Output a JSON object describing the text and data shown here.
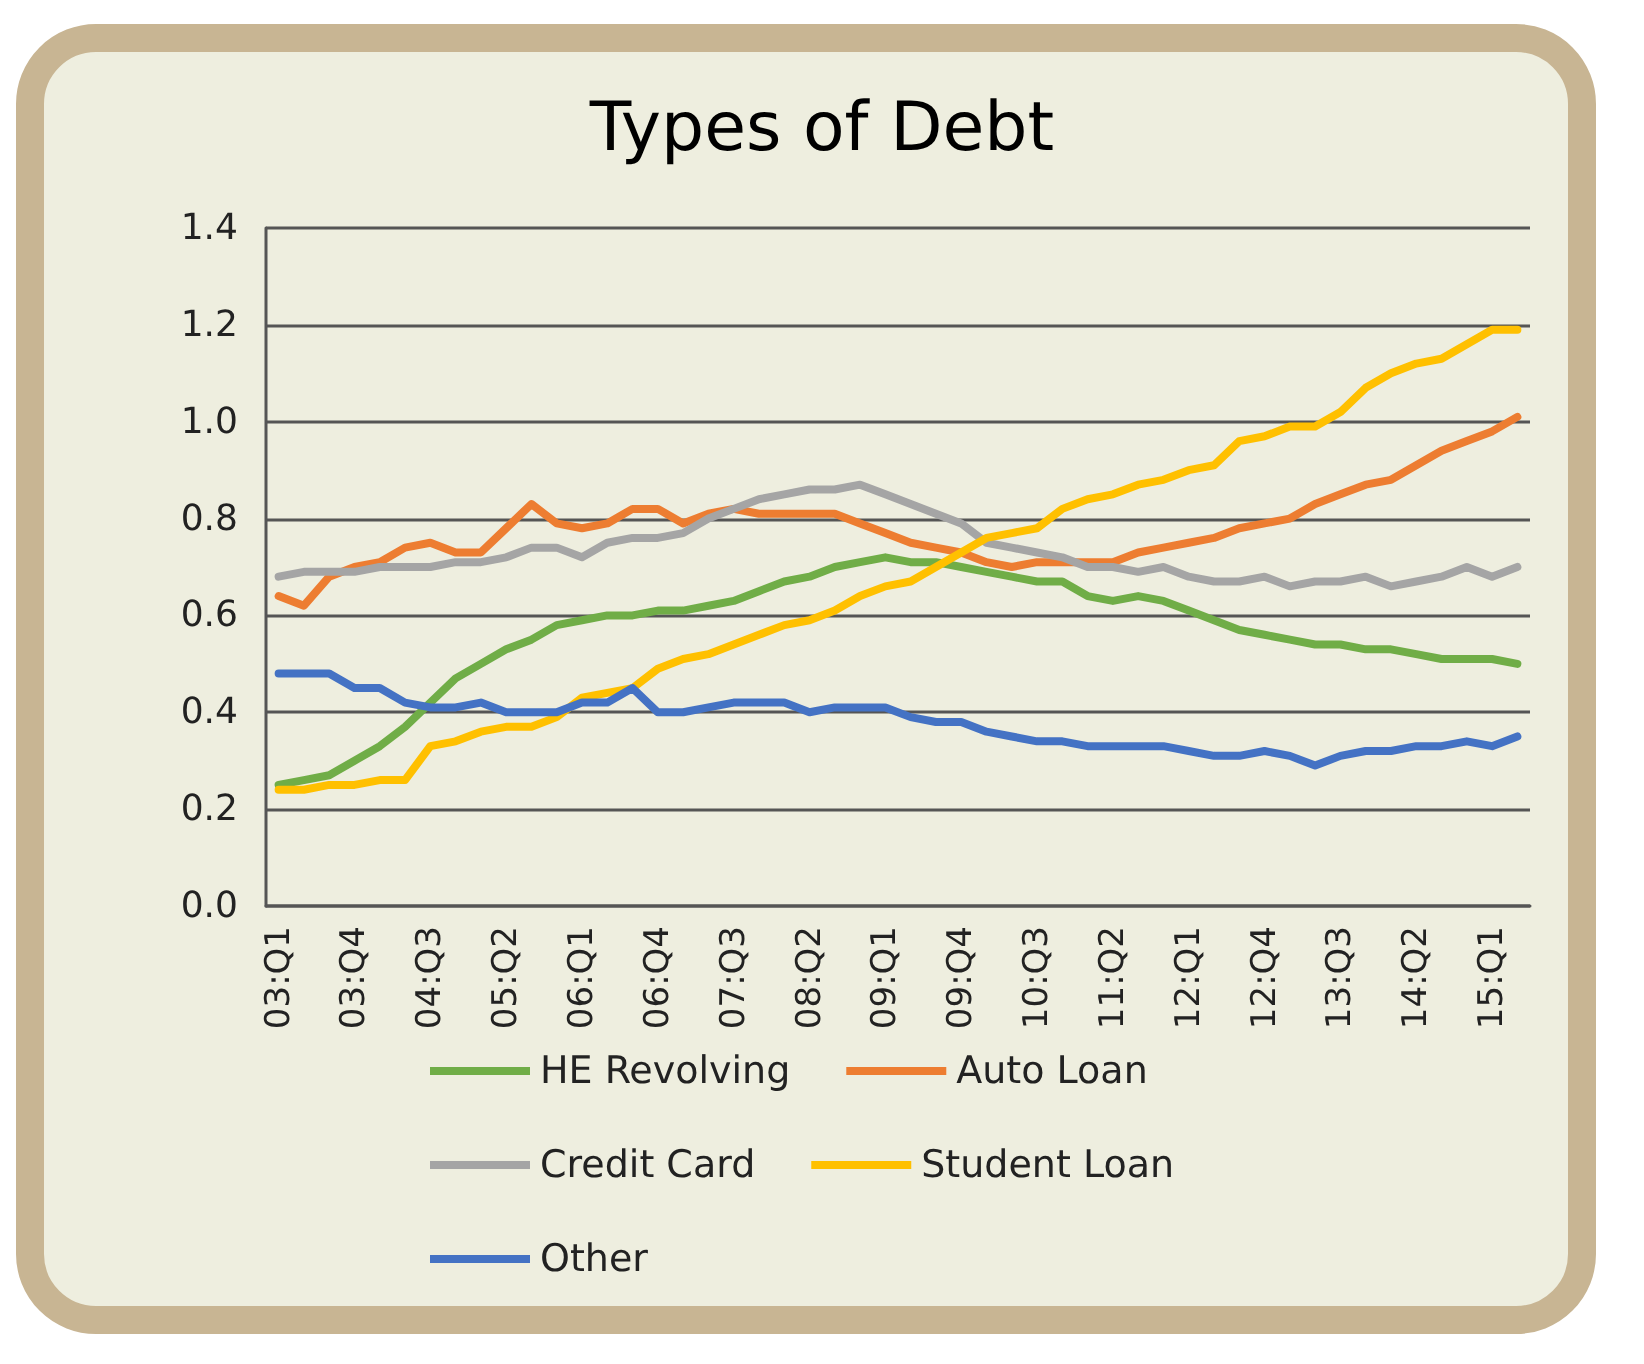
{
  "chart_data": {
    "type": "line",
    "title": "Types of Debt",
    "categories": [
      "03:Q1",
      null,
      null,
      "03:Q4",
      null,
      null,
      "04:Q3",
      null,
      null,
      "05:Q2",
      null,
      null,
      "06:Q1",
      null,
      null,
      "06:Q4",
      null,
      null,
      "07:Q3",
      null,
      null,
      "08:Q2",
      null,
      null,
      "09:Q1",
      null,
      null,
      "09:Q4",
      null,
      null,
      "10:Q3",
      null,
      null,
      "11:Q2",
      null,
      null,
      "12:Q1",
      null,
      null,
      "12:Q4",
      null,
      null,
      "13:Q3",
      null,
      null,
      "14:Q2",
      null,
      null,
      "15:Q1",
      null
    ],
    "series": [
      {
        "name": "HE Revolving",
        "color": "#70ad47",
        "values": [
          0.25,
          0.26,
          0.27,
          0.3,
          0.33,
          0.37,
          0.42,
          0.47,
          0.5,
          0.53,
          0.55,
          0.58,
          0.59,
          0.6,
          0.6,
          0.61,
          0.61,
          0.62,
          0.63,
          0.65,
          0.67,
          0.68,
          0.7,
          0.71,
          0.72,
          0.71,
          0.71,
          0.7,
          0.69,
          0.68,
          0.67,
          0.67,
          0.64,
          0.63,
          0.64,
          0.63,
          0.61,
          0.59,
          0.57,
          0.56,
          0.55,
          0.54,
          0.54,
          0.53,
          0.53,
          0.52,
          0.51,
          0.51,
          0.51,
          0.5
        ]
      },
      {
        "name": "Auto Loan",
        "color": "#ed7d31",
        "values": [
          0.64,
          0.62,
          0.68,
          0.7,
          0.71,
          0.74,
          0.75,
          0.73,
          0.73,
          0.78,
          0.83,
          0.79,
          0.78,
          0.79,
          0.82,
          0.82,
          0.79,
          0.81,
          0.82,
          0.81,
          0.81,
          0.81,
          0.81,
          0.79,
          0.77,
          0.75,
          0.74,
          0.73,
          0.71,
          0.7,
          0.71,
          0.71,
          0.71,
          0.71,
          0.73,
          0.74,
          0.75,
          0.76,
          0.78,
          0.79,
          0.8,
          0.83,
          0.85,
          0.87,
          0.88,
          0.91,
          0.94,
          0.96,
          0.98,
          1.01
        ]
      },
      {
        "name": "Credit Card",
        "color": "#a5a5a5",
        "values": [
          0.68,
          0.69,
          0.69,
          0.69,
          0.7,
          0.7,
          0.7,
          0.71,
          0.71,
          0.72,
          0.74,
          0.74,
          0.72,
          0.75,
          0.76,
          0.76,
          0.77,
          0.8,
          0.82,
          0.84,
          0.85,
          0.86,
          0.86,
          0.87,
          0.85,
          0.83,
          0.81,
          0.79,
          0.75,
          0.74,
          0.73,
          0.72,
          0.7,
          0.7,
          0.69,
          0.7,
          0.68,
          0.67,
          0.67,
          0.68,
          0.66,
          0.67,
          0.67,
          0.68,
          0.66,
          0.67,
          0.68,
          0.7,
          0.68,
          0.7
        ]
      },
      {
        "name": "Student Loan",
        "color": "#ffc000",
        "values": [
          0.24,
          0.24,
          0.25,
          0.25,
          0.26,
          0.26,
          0.33,
          0.34,
          0.36,
          0.37,
          0.37,
          0.39,
          0.43,
          0.44,
          0.45,
          0.49,
          0.51,
          0.52,
          0.54,
          0.56,
          0.58,
          0.59,
          0.61,
          0.64,
          0.66,
          0.67,
          0.7,
          0.73,
          0.76,
          0.77,
          0.78,
          0.82,
          0.84,
          0.85,
          0.87,
          0.88,
          0.9,
          0.91,
          0.96,
          0.97,
          0.99,
          0.99,
          1.02,
          1.07,
          1.1,
          1.12,
          1.13,
          1.16,
          1.19,
          1.19
        ]
      },
      {
        "name": "Other",
        "color": "#4472c4",
        "values": [
          0.48,
          0.48,
          0.48,
          0.45,
          0.45,
          0.42,
          0.41,
          0.41,
          0.42,
          0.4,
          0.4,
          0.4,
          0.42,
          0.42,
          0.45,
          0.4,
          0.4,
          0.41,
          0.42,
          0.42,
          0.42,
          0.4,
          0.41,
          0.41,
          0.41,
          0.39,
          0.38,
          0.38,
          0.36,
          0.35,
          0.34,
          0.34,
          0.33,
          0.33,
          0.33,
          0.33,
          0.32,
          0.31,
          0.31,
          0.32,
          0.31,
          0.29,
          0.31,
          0.32,
          0.32,
          0.33,
          0.33,
          0.34,
          0.33,
          0.35
        ]
      }
    ],
    "ylim": [
      0,
      1.4
    ],
    "yticks": [
      {
        "value": 0,
        "label": "0.0"
      },
      {
        "value": 0.2,
        "label": "0.2"
      },
      {
        "value": 0.4,
        "label": "0.4"
      },
      {
        "value": 0.6,
        "label": "0.6"
      },
      {
        "value": 0.8,
        "label": "0.8"
      },
      {
        "value": 1.0,
        "label": "1.0"
      },
      {
        "value": 1.2,
        "label": "1.2"
      },
      {
        "value": 1.4,
        "label": "1.4"
      }
    ],
    "grid": "y",
    "legend": "bottom",
    "marker": "none",
    "line_style": "solid"
  }
}
